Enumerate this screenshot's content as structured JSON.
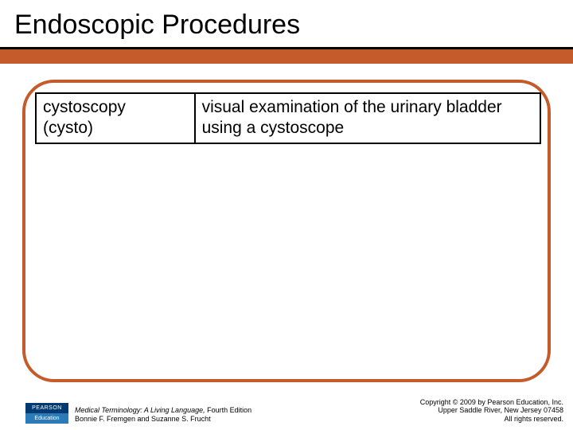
{
  "slide": {
    "title": "Endoscopic Procedures",
    "title_color": "#000000",
    "title_fontsize": 34,
    "underline_color": "#000000",
    "accent_bar_color": "#c55a2a",
    "panel_border_color": "#c55a2a",
    "panel_border_radius": 40,
    "background_color": "#ffffff"
  },
  "table": {
    "border_color": "#000000",
    "cell_fontsize": 21,
    "rows": [
      {
        "term_line1": "cystoscopy",
        "term_line2": "(cysto)",
        "definition": "visual examination of the urinary bladder using a cystoscope"
      }
    ]
  },
  "footer": {
    "logo_top": "PEARSON",
    "logo_bottom": "Education",
    "book_title": "Medical Terminology: A Living Language,",
    "book_edition": " Fourth Edition",
    "authors": "Bonnie F. Fremgen and Suzanne S. Frucht",
    "copyright_line1": "Copyright © 2009 by Pearson Education, Inc.",
    "copyright_line2": "Upper Saddle River, New Jersey 07458",
    "copyright_line3": "All rights reserved."
  }
}
